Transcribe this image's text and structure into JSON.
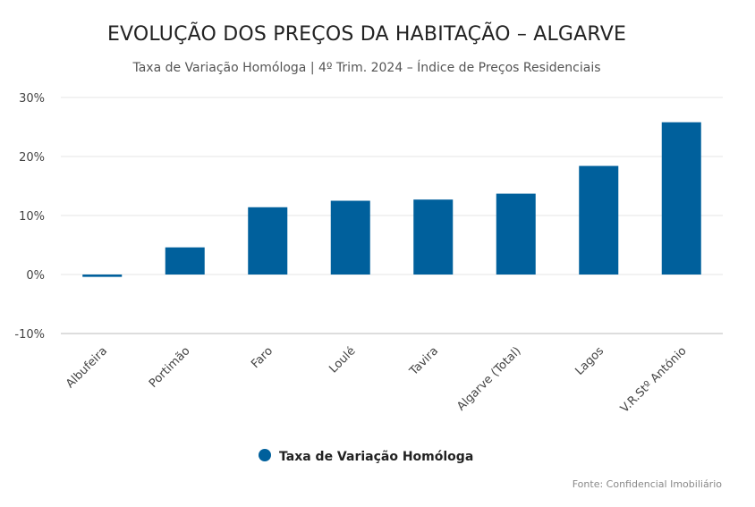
{
  "chart_data": {
    "type": "bar",
    "title": "EVOLUÇÃO DOS PREÇOS DA HABITAÇÃO – ALGARVE",
    "subtitle": "Taxa de Variação Homóloga | 4º Trim. 2024 – Índice de Preços Residenciais",
    "categories": [
      "Albufeira",
      "Portimão",
      "Faro",
      "Loulé",
      "Tavira",
      "Algarve (Total)",
      "Lagos",
      "V.R.Stº António"
    ],
    "series": [
      {
        "name": "Taxa de Variação Homóloga",
        "values": [
          -0.4,
          4.6,
          11.4,
          12.5,
          12.7,
          13.7,
          18.4,
          25.8
        ],
        "color": "#00609c"
      }
    ],
    "ylim": [
      -10,
      30
    ],
    "yticks": [
      30,
      20,
      10,
      0,
      -10
    ],
    "ytick_labels": [
      "30%",
      "20%",
      "10%",
      "0%",
      "-10%"
    ],
    "xlabel": "",
    "ylabel": "",
    "grid": true,
    "legend_position": "bottom-center",
    "source": "Fonte: Confidencial Imobiliário"
  }
}
